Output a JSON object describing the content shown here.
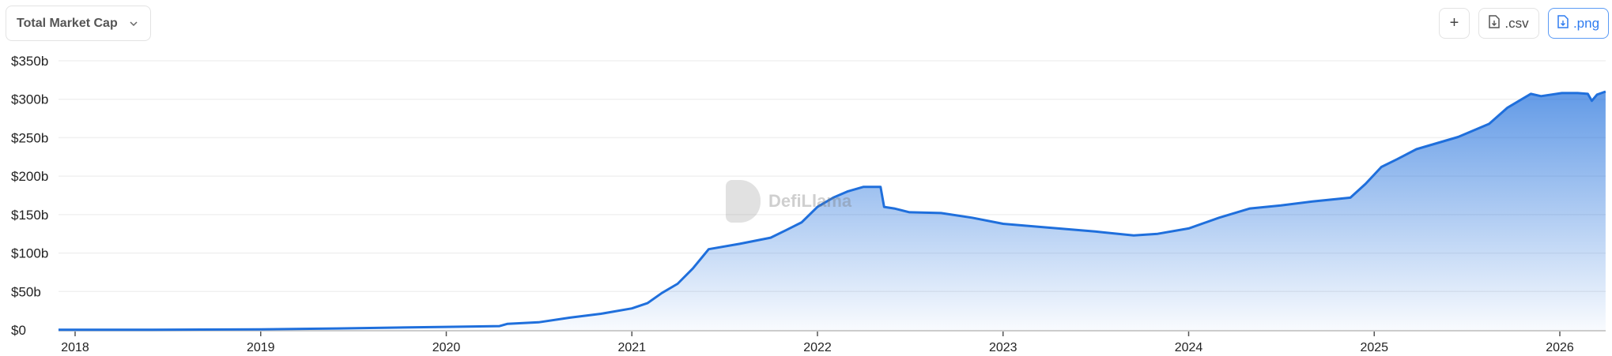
{
  "header": {
    "metric_select": "Total Market Cap",
    "add_label": "+",
    "csv_label": ".csv",
    "png_label": ".png"
  },
  "watermark": "DefiLlama",
  "colors": {
    "line": "#1f6fdc",
    "accent": "#2f7cf0"
  },
  "chart_data": {
    "type": "area",
    "title": "",
    "xlabel": "",
    "ylabel": "",
    "ylim": [
      0,
      350
    ],
    "y_ticks": [
      "$0",
      "$50b",
      "$100b",
      "$150b",
      "$200b",
      "$250b",
      "$300b",
      "$350b"
    ],
    "y_tick_values": [
      0,
      50,
      100,
      150,
      200,
      250,
      300,
      350
    ],
    "x_ticks": [
      "2018",
      "2019",
      "2020",
      "2021",
      "2022",
      "2023",
      "2024",
      "2025",
      "2026"
    ],
    "grid": true,
    "unit": "billion USD",
    "series": [
      {
        "points": [
          [
            "2017-11-25",
            0.2
          ],
          [
            "2018-06-01",
            0.3
          ],
          [
            "2019-01-01",
            0.8
          ],
          [
            "2019-06-01",
            2
          ],
          [
            "2020-01-01",
            4
          ],
          [
            "2020-04-15",
            5
          ],
          [
            "2020-05-01",
            8
          ],
          [
            "2020-07-01",
            10
          ],
          [
            "2020-09-01",
            16
          ],
          [
            "2020-11-01",
            21
          ],
          [
            "2021-01-01",
            28
          ],
          [
            "2021-02-01",
            35
          ],
          [
            "2021-03-01",
            48
          ],
          [
            "2021-04-01",
            60
          ],
          [
            "2021-05-01",
            80
          ],
          [
            "2021-06-01",
            105
          ],
          [
            "2021-08-01",
            112
          ],
          [
            "2021-10-01",
            120
          ],
          [
            "2021-11-01",
            130
          ],
          [
            "2021-12-01",
            140
          ],
          [
            "2022-01-01",
            160
          ],
          [
            "2022-02-01",
            172
          ],
          [
            "2022-03-01",
            180
          ],
          [
            "2022-04-01",
            186
          ],
          [
            "2022-05-05",
            186
          ],
          [
            "2022-05-12",
            160
          ],
          [
            "2022-06-01",
            158
          ],
          [
            "2022-07-01",
            153
          ],
          [
            "2022-09-01",
            152
          ],
          [
            "2022-11-01",
            146
          ],
          [
            "2023-01-01",
            138
          ],
          [
            "2023-04-01",
            133
          ],
          [
            "2023-07-01",
            128
          ],
          [
            "2023-09-15",
            123
          ],
          [
            "2023-11-01",
            125
          ],
          [
            "2024-01-01",
            132
          ],
          [
            "2024-03-01",
            146
          ],
          [
            "2024-05-01",
            158
          ],
          [
            "2024-07-01",
            162
          ],
          [
            "2024-09-01",
            167
          ],
          [
            "2024-11-15",
            172
          ],
          [
            "2024-12-15",
            190
          ],
          [
            "2025-01-15",
            212
          ],
          [
            "2025-02-15",
            222
          ],
          [
            "2025-03-25",
            235
          ],
          [
            "2025-06-15",
            251
          ],
          [
            "2025-08-15",
            268
          ],
          [
            "2025-09-20",
            289
          ],
          [
            "2025-11-05",
            307
          ],
          [
            "2025-11-25",
            304
          ],
          [
            "2026-01-05",
            308
          ],
          [
            "2026-02-05",
            308
          ],
          [
            "2026-02-25",
            307
          ],
          [
            "2026-03-05",
            298
          ],
          [
            "2026-03-15",
            306
          ],
          [
            "2026-04-01",
            310
          ]
        ]
      }
    ]
  }
}
